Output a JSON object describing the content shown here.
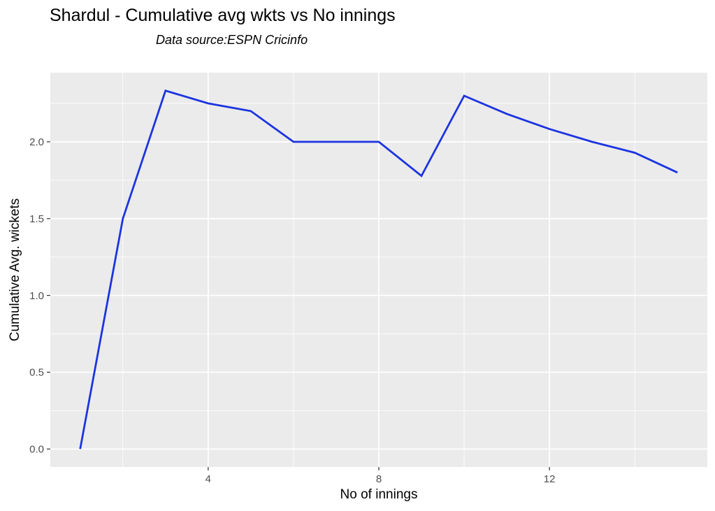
{
  "header": {
    "title": "Shardul - Cumulative avg wkts vs No innings",
    "subtitle": "Data source:ESPN Cricinfo"
  },
  "chart_data": {
    "type": "line",
    "title": "Shardul - Cumulative avg wkts vs No innings",
    "subtitle": "Data source:ESPN Cricinfo",
    "xlabel": "No of innings",
    "ylabel": "Cumulative Avg. wickets",
    "x": [
      1,
      2,
      3,
      4,
      5,
      6,
      7,
      8,
      9,
      10,
      11,
      12,
      13,
      14,
      15
    ],
    "y": [
      0.0,
      1.5,
      2.333,
      2.25,
      2.2,
      2.0,
      2.0,
      2.0,
      1.778,
      2.3,
      2.182,
      2.083,
      2.0,
      1.929,
      1.8
    ],
    "series_name": "Cumulative average wickets",
    "xlim": [
      0.3,
      15.7
    ],
    "ylim": [
      -0.117,
      2.45
    ],
    "x_major_ticks": [
      4,
      8,
      12
    ],
    "x_tick_labels": [
      "4",
      "8",
      "12"
    ],
    "x_minor_gridlines": [
      2,
      6,
      10,
      14
    ],
    "y_major_ticks": [
      0.0,
      0.5,
      1.0,
      1.5,
      2.0
    ],
    "y_tick_labels": [
      "0.0",
      "0.5",
      "1.0",
      "1.5",
      "2.0"
    ],
    "y_minor_gridlines": [
      0.25,
      0.75,
      1.25,
      1.75,
      2.25
    ],
    "grid": true,
    "legend": "none",
    "colors": {
      "line": "#1c34e0",
      "panel_background": "#ebebeb",
      "gridline": "#ffffff",
      "tick_label": "#4d4d4d",
      "tick_mark": "#333333",
      "text": "#000000",
      "page_background": "#ffffff"
    }
  }
}
